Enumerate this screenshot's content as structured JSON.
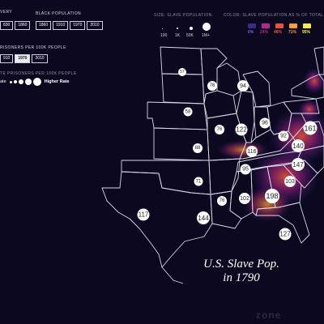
{
  "controls": {
    "slavery": {
      "title": "VERY",
      "buttons": [
        {
          "label": "830"
        },
        {
          "label": "1860"
        }
      ]
    },
    "black_population": {
      "title": "BLACK POPULATION",
      "buttons": [
        {
          "label": "1860"
        },
        {
          "label": "1910"
        },
        {
          "label": "1970"
        },
        {
          "label": "2010"
        }
      ]
    },
    "prisoners": {
      "title": "RISONERS PER 100K PEOPLE",
      "buttons": [
        {
          "label": "910"
        },
        {
          "label": "1970"
        },
        {
          "label": "2010"
        }
      ],
      "active": "1970"
    },
    "rate_legend": {
      "title": "TE PRISONERS PER 100K PEOPLE",
      "low_label": "ate",
      "high_label": "Higher Rate"
    }
  },
  "size_legend": {
    "title": "SIZE: SLAVE POPULATION",
    "values": [
      "100",
      "1K",
      "50K",
      "1M+"
    ]
  },
  "color_legend": {
    "title": "COLOR: SLAVE POPULATION AS % OF TOTAL",
    "items": [
      {
        "label": "0%",
        "color": "#3a2a8c"
      },
      {
        "label": "24%",
        "color": "#b3278f"
      },
      {
        "label": "48%",
        "color": "#e8543a"
      },
      {
        "label": "71%",
        "color": "#f5a030"
      },
      {
        "label": "95%",
        "color": "#f6e84a"
      }
    ]
  },
  "markers": [
    {
      "label": "57"
    },
    {
      "label": "76"
    },
    {
      "label": "94"
    },
    {
      "label": "58"
    },
    {
      "label": "76"
    },
    {
      "label": "122"
    },
    {
      "label": "96"
    },
    {
      "label": "92"
    },
    {
      "label": "161"
    },
    {
      "label": "88"
    },
    {
      "label": "116"
    },
    {
      "label": "140"
    },
    {
      "label": "95"
    },
    {
      "label": "147"
    },
    {
      "label": "71"
    },
    {
      "label": "103"
    },
    {
      "label": "76"
    },
    {
      "label": "102"
    },
    {
      "label": "198"
    },
    {
      "label": "117"
    },
    {
      "label": "144"
    },
    {
      "label": "127"
    }
  ],
  "caption": {
    "line1": "U.S. Slave Pop.",
    "line2": "in 1790"
  },
  "watermark": "zone",
  "colors": {
    "background": "#0b0820",
    "state_border": "#d9d9e6",
    "marker_fill": "#ffffff",
    "active_button": "#e9e9f2"
  }
}
